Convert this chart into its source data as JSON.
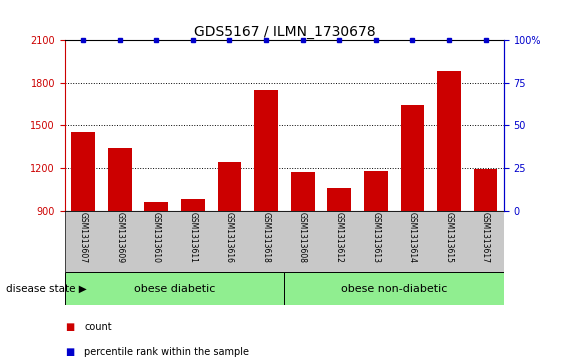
{
  "title": "GDS5167 / ILMN_1730678",
  "samples": [
    "GSM1313607",
    "GSM1313609",
    "GSM1313610",
    "GSM1313611",
    "GSM1313616",
    "GSM1313618",
    "GSM1313608",
    "GSM1313612",
    "GSM1313613",
    "GSM1313614",
    "GSM1313615",
    "GSM1313617"
  ],
  "counts": [
    1450,
    1340,
    960,
    980,
    1240,
    1750,
    1170,
    1060,
    1180,
    1640,
    1880,
    1190
  ],
  "percentile_ranks": [
    100,
    100,
    100,
    100,
    100,
    100,
    100,
    100,
    100,
    100,
    100,
    100
  ],
  "ylim_left": [
    900,
    2100
  ],
  "ylim_right": [
    0,
    100
  ],
  "yticks_left": [
    900,
    1200,
    1500,
    1800,
    2100
  ],
  "yticks_right": [
    0,
    25,
    50,
    75,
    100
  ],
  "bar_color": "#cc0000",
  "marker_color": "#0000cc",
  "group1_label": "obese diabetic",
  "group2_label": "obese non-diabetic",
  "group_bg_color": "#90ee90",
  "tick_bg_color": "#c8c8c8",
  "disease_state_label": "disease state",
  "legend_count_label": "count",
  "legend_percentile_label": "percentile rank within the sample",
  "title_fontsize": 10,
  "tick_fontsize": 7,
  "label_fontsize": 7.5,
  "group_fontsize": 8
}
